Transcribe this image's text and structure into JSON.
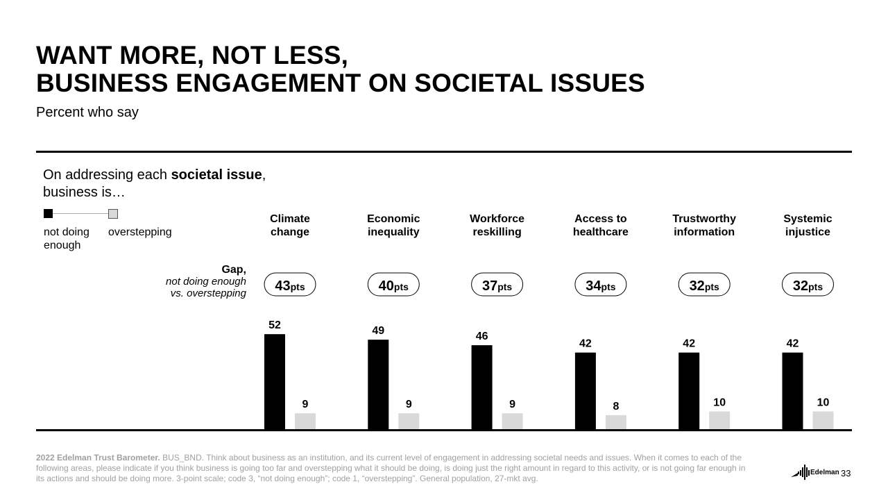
{
  "header": {
    "title_line1": "WANT MORE, NOT LESS,",
    "title_line2": "BUSINESS ENGAGEMENT ON SOCIETAL ISSUES",
    "subtitle": "Percent who say"
  },
  "question": {
    "prefix": "On addressing each ",
    "bold": "societal issue",
    "suffix": ",",
    "line2": "business is…"
  },
  "legend": {
    "not_doing_enough": "not doing enough",
    "overstepping": "overstepping"
  },
  "gap_label": {
    "line1": "Gap,",
    "line2": "not doing enough",
    "line3": "vs. overstepping"
  },
  "chart_data": {
    "type": "bar",
    "categories": [
      [
        "Climate",
        "change"
      ],
      [
        "Economic",
        "inequality"
      ],
      [
        "Workforce",
        "reskilling"
      ],
      [
        "Access to",
        "healthcare"
      ],
      [
        "Trustworthy",
        "information"
      ],
      [
        "Systemic",
        "injustice"
      ]
    ],
    "series": [
      {
        "name": "not doing enough",
        "values": [
          52,
          49,
          46,
          42,
          42,
          42
        ],
        "color": "#000000"
      },
      {
        "name": "overstepping",
        "values": [
          9,
          9,
          9,
          8,
          10,
          10
        ],
        "color": "#d9d9d9"
      }
    ],
    "gaps": [
      {
        "value": "43",
        "unit": "pts"
      },
      {
        "value": "40",
        "unit": "pts"
      },
      {
        "value": "37",
        "unit": "pts"
      },
      {
        "value": "34",
        "unit": "pts"
      },
      {
        "value": "32",
        "unit": "pts"
      },
      {
        "value": "32",
        "unit": "pts"
      }
    ],
    "ylim": [
      0,
      100
    ],
    "grid": false
  },
  "footer": {
    "source_bold": "2022 Edelman Trust Barometer.",
    "source_text": " BUS_BND. Think about business as an institution, and its current level of engagement in addressing societal needs and issues. When it comes to each of the following areas, please indicate if you think business is going too far and overstepping what it should be doing, is doing just the right amount in regard to this activity, or is not going far enough in its actions and should be doing more. 3-point scale; code 3, “not doing enough”; code 1, “overstepping”. General population, 27-mkt avg.",
    "logo_text": "Edelman",
    "page_number": "33"
  }
}
